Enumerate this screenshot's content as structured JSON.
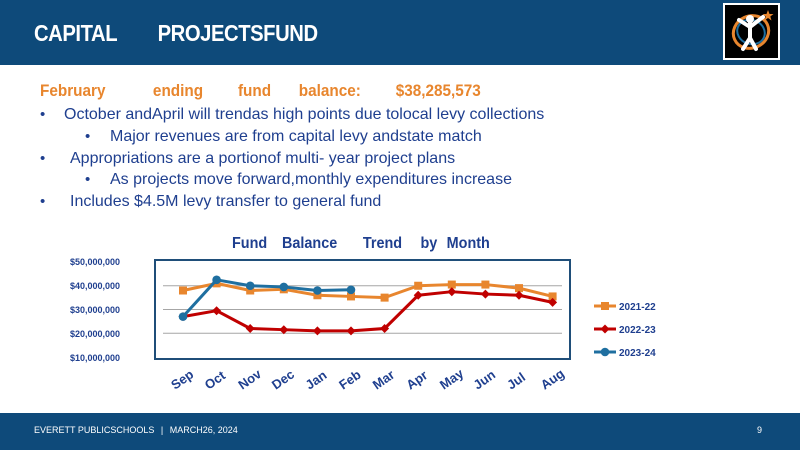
{
  "header": {
    "title_word1": "CAPITAL",
    "title_word2": "PROJECTSFUND",
    "logo_icon": "district-logo-icon"
  },
  "fund_balance": {
    "label_1": "February",
    "label_2": "ending",
    "label_3": "fund",
    "label_4": "balance:",
    "amount": "$38,285,573"
  },
  "bullets": [
    "October andApril will trendas high points due tolocal levy collections",
    "Major revenues are from capital levy andstate match",
    "Appropriations are a portionof multi- year project plans",
    "As projects move forward,monthly expenditures increase",
    "Includes $4.5M levy transfer to general fund"
  ],
  "bullet_glyph": "•",
  "chart_title_words": [
    "Fund",
    "Balance",
    "Trend",
    "by",
    "Month"
  ],
  "footer": {
    "org": "EVERETT PUBLICSCHOOLS",
    "separator": "|",
    "date": "MARCH26, 2024",
    "page": "9"
  },
  "colors": {
    "header_bg": "#0e4a7a",
    "accent_orange": "#e8862e",
    "text_blue": "#1f3f8f",
    "series_2021": "#e8862e",
    "series_2022": "#c00000",
    "series_2023": "#1f6fa0"
  },
  "chart_data": {
    "type": "line",
    "title": "Fund Balance Trend by Month",
    "categories": [
      "Sep",
      "Oct",
      "Nov",
      "Dec",
      "Jan",
      "Feb",
      "Mar",
      "Apr",
      "May",
      "Jun",
      "Jul",
      "Aug"
    ],
    "y_ticks": [
      "$10,000,000",
      "$20,000,000",
      "$30,000,000",
      "$40,000,000",
      "$50,000,000"
    ],
    "ylim": [
      10000000,
      50000000
    ],
    "grid": true,
    "legend_position": "right",
    "series": [
      {
        "name": "2021-22",
        "color": "#e8862e",
        "marker": "square",
        "values": [
          38000000,
          41000000,
          38000000,
          38500000,
          36000000,
          35500000,
          35000000,
          40000000,
          40500000,
          40500000,
          39000000,
          35500000
        ]
      },
      {
        "name": "2022-23",
        "color": "#c00000",
        "marker": "diamond",
        "values": [
          27000000,
          29500000,
          22000000,
          21500000,
          21000000,
          21000000,
          22000000,
          36000000,
          37500000,
          36500000,
          36000000,
          33000000
        ]
      },
      {
        "name": "2023-24",
        "color": "#1f6fa0",
        "marker": "circle",
        "values": [
          27000000,
          42500000,
          40000000,
          39500000,
          38000000,
          38300000,
          null,
          null,
          null,
          null,
          null,
          null
        ]
      }
    ]
  }
}
